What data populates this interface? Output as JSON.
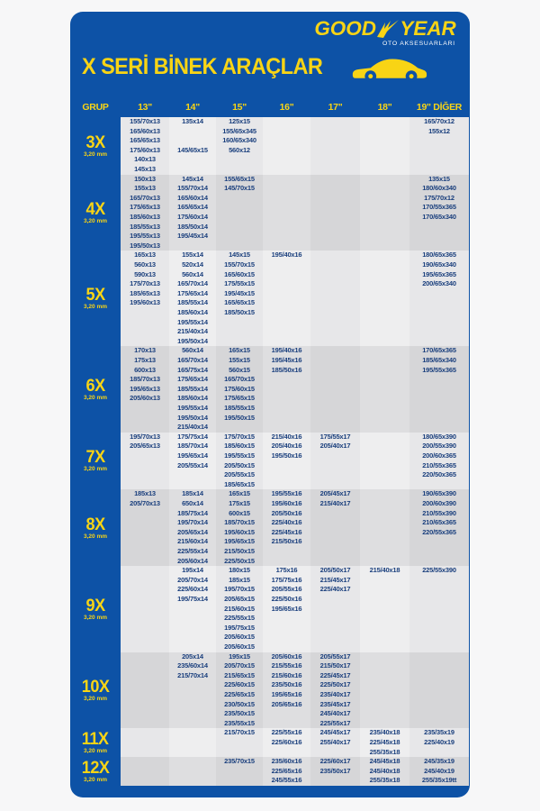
{
  "brand": {
    "logo_good": "GOOD",
    "logo_year": "YEAR",
    "subtitle": "OTO AKSESUARLARI"
  },
  "title": "X SERİ BİNEK ARAÇLAR",
  "colors": {
    "card_blue": "#0d52a6",
    "accent_yellow": "#f8d415",
    "band_light": "#e7e7e9",
    "band_dark": "#d6d6d8",
    "cell_text": "#1a3f7d"
  },
  "table": {
    "columns": [
      "GRUP",
      "13\"",
      "14\"",
      "15\"",
      "16\"",
      "17\"",
      "18\"",
      "19\" DİĞER"
    ],
    "column_keys": [
      "c13",
      "c14",
      "c15",
      "c16",
      "c17",
      "c18",
      "c19"
    ],
    "groups": [
      {
        "label": "3X",
        "thickness": "3,20 mm",
        "rows": 6,
        "cells": {
          "c13": [
            "155/70x13",
            "165/60x13",
            "165/65x13",
            "175/60x13",
            "140x13",
            "145x13"
          ],
          "c14": [
            "135x14",
            "",
            "",
            "145/65x15"
          ],
          "c15": [
            "125x15",
            "155/65x345",
            "160/65x340",
            "560x12"
          ],
          "c16": [],
          "c17": [],
          "c18": [],
          "c19": [
            "165/70x12",
            "155x12"
          ]
        }
      },
      {
        "label": "4X",
        "thickness": "3,20 mm",
        "rows": 8,
        "cells": {
          "c13": [
            "150x13",
            "155x13",
            "165/70x13",
            "175/65x13",
            "185/60x13",
            "185/55x13",
            "195/55x13",
            "195/50x13"
          ],
          "c14": [
            "145x14",
            "155/70x14",
            "165/60x14",
            "165/65x14",
            "175/60x14",
            "185/50x14",
            "195/45x14"
          ],
          "c15": [
            "155/65x15",
            "145/70x15"
          ],
          "c16": [],
          "c17": [],
          "c18": [],
          "c19": [
            "135x15",
            "180/60x340",
            "175/70x12",
            "170/55x365",
            "170/65x340"
          ]
        }
      },
      {
        "label": "5X",
        "thickness": "3,20 mm",
        "rows": 10,
        "cells": {
          "c13": [
            "165x13",
            "560x13",
            "590x13",
            "175/70x13",
            "185/65x13",
            "195/60x13"
          ],
          "c14": [
            "155x14",
            "520x14",
            "560x14",
            "165/70x14",
            "175/65x14",
            "185/55x14",
            "185/60x14",
            "195/55x14",
            "215/40x14",
            "195/50x14"
          ],
          "c15": [
            "145x15",
            "155/70x15",
            "165/60x15",
            "175/55x15",
            "195/45x15",
            "165/65x15",
            "185/50x15"
          ],
          "c16": [
            "195/40x16"
          ],
          "c17": [],
          "c18": [],
          "c19": [
            "180/65x365",
            "190/65x340",
            "195/65x365",
            "200/65x340"
          ]
        }
      },
      {
        "label": "6X",
        "thickness": "3,20 mm",
        "rows": 9,
        "cells": {
          "c13": [
            "170x13",
            "175x13",
            "600x13",
            "185/70x13",
            "195/65x13",
            "205/60x13"
          ],
          "c14": [
            "560x14",
            "165/70x14",
            "165/75x14",
            "175/65x14",
            "185/55x14",
            "185/60x14",
            "195/55x14",
            "195/50x14",
            "215/40x14"
          ],
          "c15": [
            "165x15",
            "155x15",
            "560x15",
            "165/70x15",
            "175/60x15",
            "175/65x15",
            "185/55x15",
            "195/50x15"
          ],
          "c16": [
            "195/40x16",
            "195/45x16",
            "185/50x16"
          ],
          "c17": [],
          "c18": [],
          "c19": [
            "170/65x365",
            "185/65x340",
            "195/55x365"
          ]
        }
      },
      {
        "label": "7X",
        "thickness": "3,20 mm",
        "rows": 6,
        "cells": {
          "c13": [
            "195/70x13",
            "205/65x13"
          ],
          "c14": [
            "175/75x14",
            "185/70x14",
            "195/65x14",
            "205/55x14"
          ],
          "c15": [
            "175/70x15",
            "185/60x15",
            "195/55x15",
            "205/50x15",
            "205/55x15",
            "185/65x15"
          ],
          "c16": [
            "215/40x16",
            "205/40x16",
            "195/50x16"
          ],
          "c17": [
            "175/55x17",
            "205/40x17"
          ],
          "c18": [],
          "c19": [
            "180/65x390",
            "200/55x390",
            "200/60x365",
            "210/55x365",
            "220/50x365"
          ]
        }
      },
      {
        "label": "8X",
        "thickness": "3,20 mm",
        "rows": 8,
        "cells": {
          "c13": [
            "185x13",
            "205/70x13"
          ],
          "c14": [
            "185x14",
            "650x14",
            "185/75x14",
            "195/70x14",
            "205/65x14",
            "215/60x14",
            "225/55x14",
            "205/60x14"
          ],
          "c15": [
            "165x15",
            "175x15",
            "600x15",
            "185/70x15",
            "195/60x15",
            "195/65x15",
            "215/50x15",
            "225/50x15"
          ],
          "c16": [
            "195/55x16",
            "195/60x16",
            "205/50x16",
            "225/40x16",
            "225/45x16",
            "215/50x16"
          ],
          "c17": [
            "205/45x17",
            "215/40x17"
          ],
          "c18": [],
          "c19": [
            "190/65x390",
            "200/60x390",
            "210/55x390",
            "210/65x365",
            "220/55x365"
          ]
        }
      },
      {
        "label": "9X",
        "thickness": "3,20 mm",
        "rows": 9,
        "cells": {
          "c13": [],
          "c14": [
            "195x14",
            "205/70x14",
            "225/60x14",
            "195/75x14"
          ],
          "c15": [
            "180x15",
            "185x15",
            "195/70x15",
            "205/65x15",
            "215/60x15",
            "225/55x15",
            "195/75x15",
            "205/60x15",
            "205/60x15"
          ],
          "c16": [
            "175x16",
            "175/75x16",
            "205/55x16",
            "225/50x16",
            "195/65x16"
          ],
          "c17": [
            "205/50x17",
            "215/45x17",
            "225/40x17"
          ],
          "c18": [
            "215/40x18"
          ],
          "c19": [
            "225/55x390"
          ]
        }
      },
      {
        "label": "10X",
        "thickness": "3,20 mm",
        "rows": 8,
        "cells": {
          "c13": [],
          "c14": [
            "205x14",
            "235/60x14",
            "215/70x14"
          ],
          "c15": [
            "195x15",
            "205/70x15",
            "215/65x15",
            "225/60x15",
            "225/65x15",
            "230/50x15",
            "235/50x15",
            "235/55x15"
          ],
          "c16": [
            "205/60x16",
            "215/55x16",
            "215/60x16",
            "235/50x16",
            "195/65x16",
            "205/65x16"
          ],
          "c17": [
            "205/55x17",
            "215/50x17",
            "225/45x17",
            "225/50x17",
            "235/40x17",
            "235/45x17",
            "245/40x17",
            "225/55x17"
          ],
          "c18": [],
          "c19": []
        }
      },
      {
        "label": "11X",
        "thickness": "3,20 mm",
        "rows": 3,
        "cells": {
          "c13": [],
          "c14": [],
          "c15": [
            "215/70x15"
          ],
          "c16": [
            "225/55x16",
            "225/60x16"
          ],
          "c17": [
            "245/45x17",
            "255/40x17"
          ],
          "c18": [
            "235/40x18",
            "225/45x18",
            "255/35x18"
          ],
          "c19": [
            "235/35x19",
            "225/40x19"
          ]
        }
      },
      {
        "label": "12X",
        "thickness": "3,20 mm",
        "rows": 3,
        "cells": {
          "c13": [],
          "c14": [],
          "c15": [
            "235/70x15"
          ],
          "c16": [
            "235/60x16",
            "225/65x16",
            "245/55x16"
          ],
          "c17": [
            "225/60x17",
            "235/50x17"
          ],
          "c18": [
            "245/45x18",
            "245/40x18",
            "255/35x18"
          ],
          "c19": [
            "245/35x19",
            "245/40x19",
            "255/35x19tt"
          ]
        }
      }
    ]
  }
}
